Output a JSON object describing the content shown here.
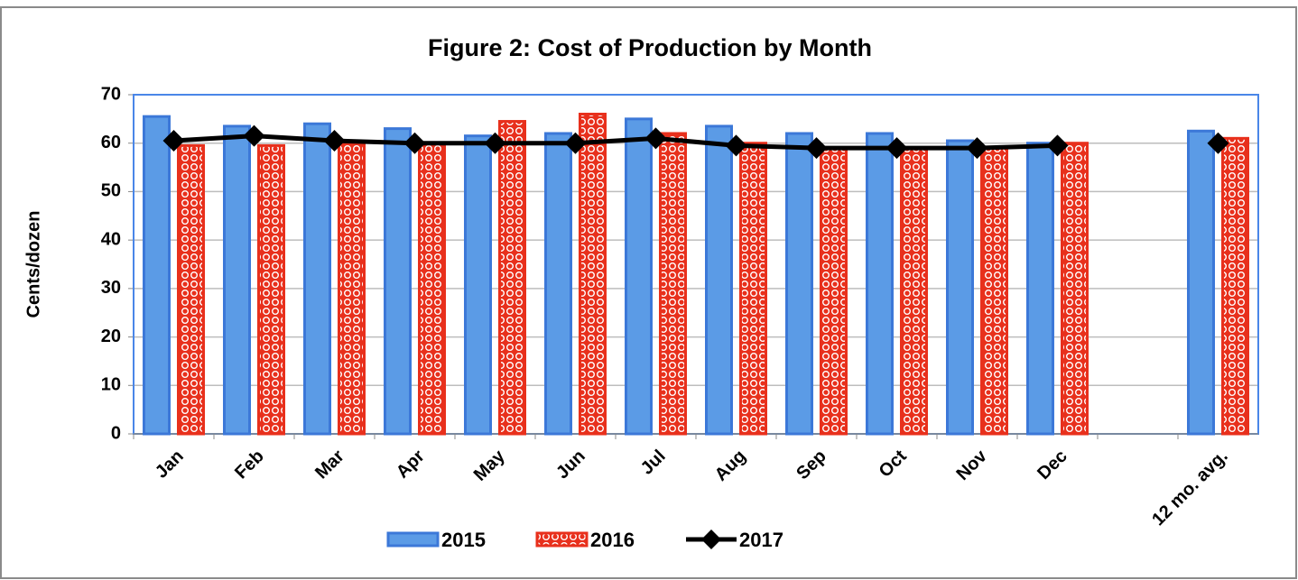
{
  "chart_data": {
    "type": "bar",
    "title": "Figure 2: Cost of Production by Month",
    "y_label": "Cents/dozen",
    "categories": [
      "Jan",
      "Feb",
      "Mar",
      "Apr",
      "May",
      "Jun",
      "Jul",
      "Aug",
      "Sep",
      "Oct",
      "Nov",
      "Dec",
      null,
      "12 mo. avg."
    ],
    "series": [
      {
        "name": "2015",
        "type": "bar",
        "color": "#5b9be6",
        "values": [
          65.5,
          63.5,
          64,
          63,
          61.5,
          62,
          65,
          63.5,
          62,
          62,
          60.5,
          60,
          null,
          62.5
        ]
      },
      {
        "name": "2016",
        "type": "bar",
        "color": "#e8301c",
        "pattern": "circles",
        "values": [
          59.5,
          59.5,
          60,
          60,
          64.5,
          66,
          62,
          60,
          59,
          59,
          59,
          60,
          null,
          61
        ]
      },
      {
        "name": "2017",
        "type": "line",
        "color": "#000000",
        "values": [
          60.5,
          61.5,
          60.5,
          60,
          60,
          60,
          61,
          59.5,
          59,
          59,
          59,
          59.5,
          null,
          60
        ]
      }
    ],
    "ylim": [
      0,
      70
    ],
    "yticks": [
      0,
      10,
      20,
      30,
      40,
      50,
      60,
      70
    ],
    "grid": true,
    "legend": "bottom"
  }
}
